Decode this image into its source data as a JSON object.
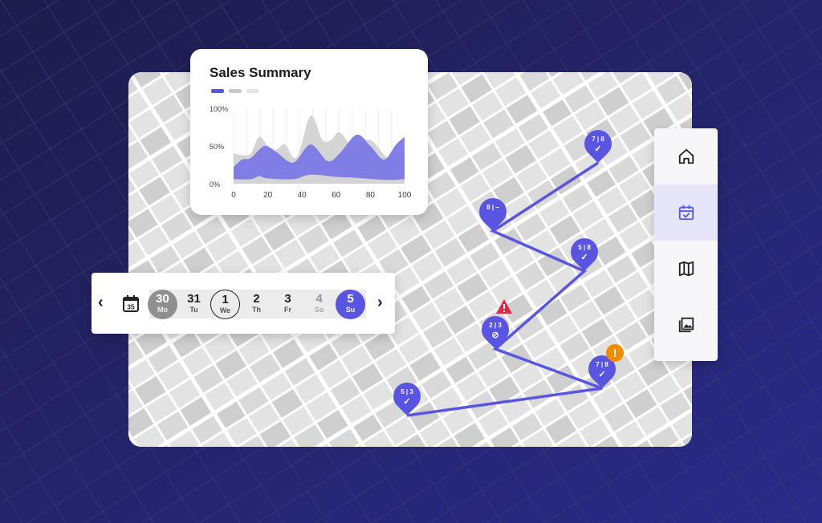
{
  "colors": {
    "accent": "#5a55e0",
    "background": "#15163f",
    "warning": "#f08c00",
    "alert": "#e0294a"
  },
  "sales_summary": {
    "title": "Sales Summary",
    "chart_data": {
      "type": "area",
      "title": "Sales Summary",
      "xlim": [
        0,
        100
      ],
      "ylim": [
        0,
        100
      ],
      "x_ticks": [
        "0",
        "20",
        "40",
        "60",
        "80",
        "100"
      ],
      "y_ticks": [
        "0%",
        "50%",
        "100%"
      ],
      "grid": "vertical",
      "legend": "top-left",
      "series": [
        {
          "color": "#d4d4d4",
          "x": [
            0,
            5,
            10,
            15,
            20,
            25,
            30,
            37,
            45,
            52,
            57,
            62,
            70,
            80,
            90,
            100
          ],
          "y": [
            40,
            38,
            40,
            62,
            50,
            45,
            52,
            35,
            90,
            58,
            58,
            68,
            50,
            58,
            35,
            38
          ]
        },
        {
          "color": "#7b78e6",
          "x": [
            0,
            5,
            10,
            18,
            25,
            35,
            45,
            55,
            62,
            72,
            80,
            88,
            95,
            100
          ],
          "y": [
            22,
            32,
            34,
            50,
            42,
            28,
            52,
            30,
            40,
            65,
            50,
            32,
            52,
            62
          ]
        },
        {
          "color": "#d4d4d4",
          "x": [
            0,
            10,
            15,
            20,
            35,
            45,
            60,
            70,
            90,
            100
          ],
          "y": [
            6,
            6,
            10,
            7,
            6,
            12,
            9,
            8,
            5,
            6
          ]
        }
      ],
      "legend_colors": [
        "#5a55e0",
        "#c8c8c8",
        "#e6e6e6"
      ]
    }
  },
  "dates": {
    "prev_icon": "chevron-left-icon",
    "next_icon": "chevron-right-icon",
    "calendar_label": "35",
    "days": [
      {
        "num": "30",
        "wd": "Mo",
        "state": "past"
      },
      {
        "num": "31",
        "wd": "Tu",
        "state": "normal"
      },
      {
        "num": "1",
        "wd": "We",
        "state": "today"
      },
      {
        "num": "2",
        "wd": "Th",
        "state": "normal"
      },
      {
        "num": "3",
        "wd": "Fr",
        "state": "normal"
      },
      {
        "num": "4",
        "wd": "Sa",
        "state": "disabled"
      },
      {
        "num": "5",
        "wd": "Su",
        "state": "selected"
      }
    ]
  },
  "sidebar": {
    "items": [
      {
        "icon": "home-icon",
        "active": false
      },
      {
        "icon": "calendar-check-icon",
        "active": true
      },
      {
        "icon": "map-icon",
        "active": false
      },
      {
        "icon": "image-icon",
        "active": false
      }
    ]
  },
  "route": {
    "stops": [
      {
        "label": "7 | 8",
        "status": "check"
      },
      {
        "label": "8 | –",
        "status": "none"
      },
      {
        "label": "5 | 8",
        "status": "check"
      },
      {
        "label": "2 | 3",
        "status": "blocked",
        "badge": "alert"
      },
      {
        "label": "7 | 8",
        "status": "check",
        "badge": "warning"
      },
      {
        "label": "5 | 3",
        "status": "check"
      }
    ]
  }
}
